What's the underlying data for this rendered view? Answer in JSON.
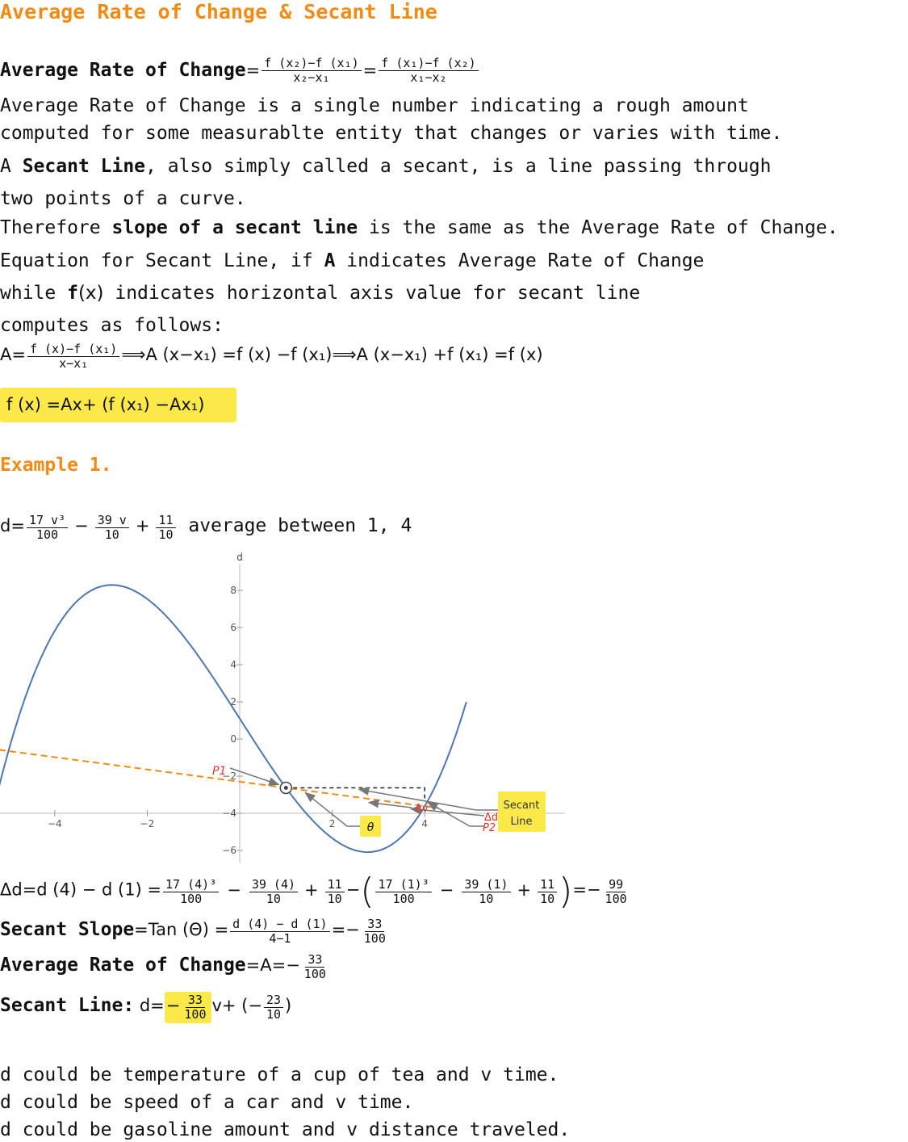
{
  "title": "Average Rate of Change & Secant Line",
  "def": {
    "label": "Average Rate of Change",
    "eq": "=",
    "frac1_num": "f (x₂)−f (x₁)",
    "frac1_den": "x₂−x₁",
    "mid_eq": "=",
    "frac2_num": "f (x₁)−f (x₂)",
    "frac2_den": "x₁−x₂"
  },
  "para1": {
    "line1": "Average Rate of Change is a single number indicating a rough amount",
    "line2": "computed for some measurablte entity that changes or varies with time."
  },
  "para2": {
    "pre": "A ",
    "bold": "Secant Line",
    "post": ", also simply called a secant, is a line passing through",
    "line2": "two points of a curve."
  },
  "para3": {
    "pre": "Therefore ",
    "bold": "slope of a secant line",
    "post": " is the same as the Average Rate of Change."
  },
  "para4": {
    "line1_pre": "Equation for Secant Line, if ",
    "line1_bold": "A",
    "line1_post": " indicates Average Rate of Change",
    "line2_pre": "while ",
    "line2_bold": "f",
    "line2_mid": "(x)",
    "line2_post": " indicates horizontal axis value for secant line",
    "line3": "computes as follows:"
  },
  "deriv": {
    "lhs": "A=",
    "num": "f (x)−f (x₁)",
    "den": "x−x₁",
    "rest": "⟹A (x−x₁) =f (x) −f (x₁)⟹A (x−x₁) +f (x₁) =f (x)"
  },
  "result_formula": "f (x) =Ax+ (f (x₁) −Ax₁)",
  "example_title": "Example 1.",
  "example": {
    "lhs": "d=",
    "t1_num": "17 v³",
    "t1_den": "100",
    "op1": "−",
    "t2_num": "39 v",
    "t2_den": "10",
    "op2": "+",
    "t3_num": "11",
    "t3_den": "10",
    "tail": " average between 1, 4"
  },
  "chart_data": {
    "type": "line",
    "xlabel": "",
    "ylabel": "d",
    "xlim": [
      -5.3,
      5.3
    ],
    "ylim": [
      -7,
      9.4
    ],
    "xticks": [
      -4,
      -2,
      2,
      4
    ],
    "yticks": [
      -6,
      -4,
      -2,
      0,
      2,
      4,
      6,
      8
    ],
    "curve": {
      "expr": "d = 17v³/100 − 39v/10 + 11/10",
      "x": [
        -5.2,
        4.9
      ],
      "color": "#5076b0"
    },
    "secant": {
      "slope": -0.33,
      "intercept": -2.3,
      "x": [
        -5.2,
        4.3
      ],
      "color": "#f28b14",
      "style": "dashed"
    },
    "points": [
      {
        "label": "P1",
        "x": 1,
        "y": -2.63
      },
      {
        "label": "P2",
        "x": 4,
        "y": -3.62
      }
    ],
    "annotations": {
      "p1": "P1",
      "p2": "P2",
      "theta": "θ",
      "dv": "Δv",
      "dd": "Δd",
      "secant_label_1": "Secant",
      "secant_label_2": "Line"
    },
    "colors": {
      "curve": "#5076b0",
      "secant": "#f28b14",
      "label_red": "#e8352a",
      "highlight": "#fbe94a"
    }
  },
  "calc": {
    "dd_lhs": "Δd=d (4) − d (1) =",
    "a_num": "17 (4)³",
    "a_den": "100",
    "op1": "−",
    "b_num": "39 (4)",
    "b_den": "10",
    "op2": "+",
    "c_num": "11",
    "c_den": "10",
    "op3": "−",
    "d_num": "17 (1)³",
    "d_den": "100",
    "op4": "−",
    "e_num": "39 (1)",
    "e_den": "10",
    "op5": "+",
    "f_num": "11",
    "f_den": "10",
    "res_pre": "=−",
    "res_num": "99",
    "res_den": "100"
  },
  "slope": {
    "label": "Secant Slope",
    "mid": "=Tan (Θ) =",
    "num": "d (4) − d (1)",
    "den": "4−1",
    "res_pre": "=−",
    "res_num": "33",
    "res_den": "100"
  },
  "arc": {
    "label": "Average Rate of Change",
    "mid": "=A=−",
    "num": "33",
    "den": "100"
  },
  "secline": {
    "label": "Secant Line:",
    "mid": " d=",
    "hl_pre": "−",
    "hl_num": "33",
    "hl_den": "100",
    "post": "v+ (−",
    "num2": "23",
    "den2": "10",
    "close": ")"
  },
  "examples_text": {
    "l1": "d could be temperature of a cup of tea and v time.",
    "l2": "d could be speed of a car and v time.",
    "l3": "d could be gasoline amount and v distance traveled."
  }
}
